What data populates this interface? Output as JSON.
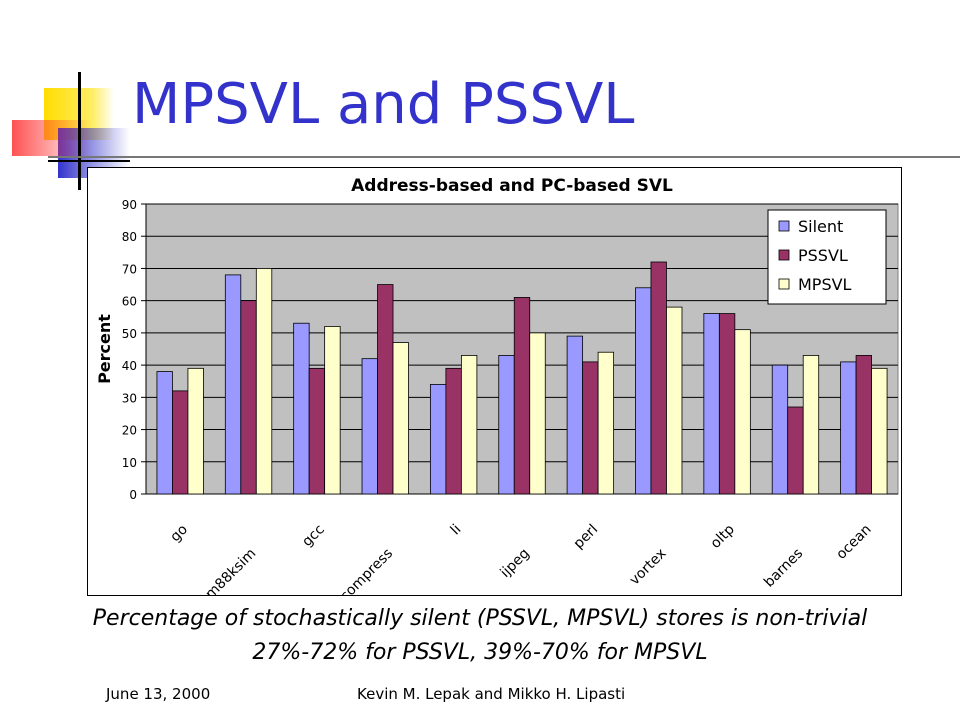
{
  "slide": {
    "title": "MPSVL and PSSVL",
    "caption_line1": "Percentage of stochastically silent (PSSVL, MPSVL) stores is non-trivial",
    "caption_line2": "27%-72% for PSSVL, 39%-70% for MPSVL",
    "footer_date": "June 13, 2000",
    "footer_authors": "Kevin M. Lepak and Mikko H. Lipasti"
  },
  "chart_data": {
    "type": "bar",
    "title": "Address-based and PC-based SVL",
    "xlabel": "",
    "ylabel": "Percent",
    "ylim": [
      0,
      90
    ],
    "yticks": [
      0,
      10,
      20,
      30,
      40,
      50,
      60,
      70,
      80,
      90
    ],
    "grid": true,
    "legend_position": "top-right",
    "categories": [
      "go",
      "m88ksim",
      "gcc",
      "compress",
      "li",
      "ijpeg",
      "perl",
      "vortex",
      "oltp",
      "barnes",
      "ocean"
    ],
    "series": [
      {
        "name": "Silent",
        "color": "#9999ff",
        "values": [
          38,
          68,
          53,
          42,
          34,
          43,
          49,
          64,
          56,
          40,
          41
        ]
      },
      {
        "name": "PSSVL",
        "color": "#993366",
        "values": [
          32,
          60,
          39,
          65,
          39,
          61,
          41,
          72,
          56,
          27,
          43
        ]
      },
      {
        "name": "MPSVL",
        "color": "#ffffcc",
        "values": [
          39,
          70,
          52,
          47,
          43,
          50,
          44,
          58,
          51,
          43,
          39
        ]
      }
    ],
    "plot_background": "#c0c0c0"
  }
}
